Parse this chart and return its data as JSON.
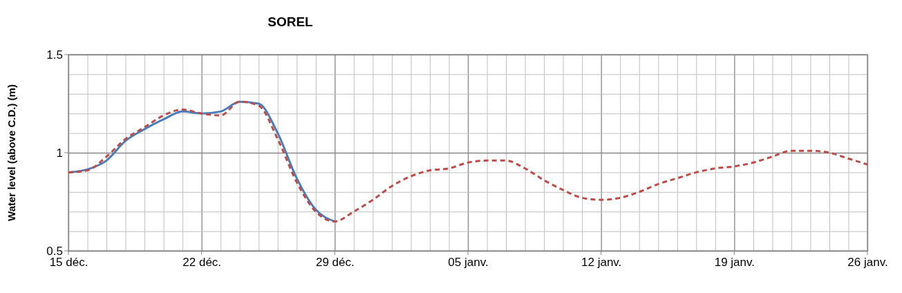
{
  "chart_data": {
    "type": "line",
    "title": "SOREL",
    "ylabel": "Water level (above C.D.) (m)",
    "categories": [
      "15 déc.",
      null,
      null,
      null,
      null,
      null,
      null,
      "22 déc.",
      null,
      null,
      null,
      null,
      null,
      null,
      "29 déc.",
      null,
      null,
      null,
      null,
      null,
      null,
      "05 janv.",
      null,
      null,
      null,
      null,
      null,
      null,
      "12 janv.",
      null,
      null,
      null,
      null,
      null,
      null,
      "19 janv.",
      null,
      null,
      null,
      null,
      null,
      null,
      "26 janv."
    ],
    "series": [
      {
        "color": "#be4b48",
        "line_style": "dashed",
        "values": [
          0.9,
          0.91,
          0.98,
          1.07,
          1.13,
          1.19,
          1.22,
          1.2,
          1.19,
          1.26,
          1.24,
          1.07,
          0.85,
          0.7,
          0.65,
          0.7,
          0.76,
          0.83,
          0.88,
          0.91,
          0.92,
          0.95,
          0.96,
          0.96,
          0.92,
          0.86,
          0.81,
          0.77,
          0.76,
          0.77,
          0.8,
          0.84,
          0.87,
          0.9,
          0.92,
          0.93,
          0.95,
          0.98,
          1.01,
          1.01,
          1.0,
          0.97,
          0.94
        ]
      },
      {
        "color": "#4a7ebb",
        "line_style": "solid",
        "values": [
          0.9,
          0.915,
          0.96,
          1.06,
          1.12,
          1.17,
          1.21,
          1.2,
          1.21,
          1.26,
          1.25,
          1.1,
          0.87,
          0.71,
          0.65,
          null,
          null,
          null,
          null,
          null,
          null,
          null,
          null,
          null,
          null,
          null,
          null,
          null,
          null,
          null,
          null,
          null,
          null,
          null,
          null,
          null,
          null,
          null,
          null,
          null,
          null,
          null,
          null
        ]
      }
    ],
    "ylim": [
      0.5,
      1.5
    ],
    "yticks": [
      0.5,
      {
        "value": 0.6,
        "label": null
      },
      {
        "value": 0.7,
        "label": null
      },
      {
        "value": 0.8,
        "label": null
      },
      {
        "value": 0.9,
        "label": null
      },
      1,
      {
        "value": 1.1,
        "label": null
      },
      {
        "value": 1.2,
        "label": null
      },
      {
        "value": 1.3,
        "label": null
      },
      {
        "value": 1.4,
        "label": null
      },
      1.5
    ],
    "grid": true,
    "marker": "none"
  }
}
